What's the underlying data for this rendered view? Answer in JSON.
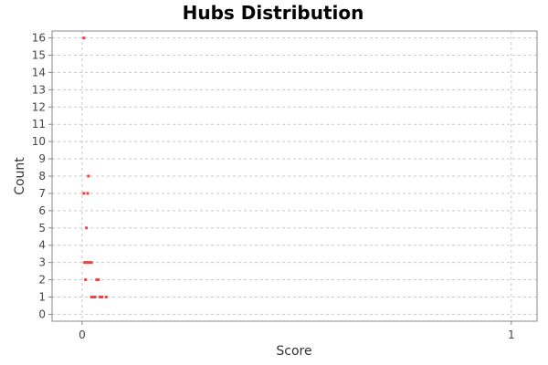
{
  "chart_data": {
    "type": "scatter",
    "title": "Hubs Distribution",
    "xlabel": "Score",
    "ylabel": "Count",
    "xlim": [
      -0.07,
      1.06
    ],
    "ylim": [
      -0.4,
      16.4
    ],
    "x_ticks": [
      0,
      1
    ],
    "y_ticks": [
      0,
      1,
      2,
      3,
      4,
      5,
      6,
      7,
      8,
      9,
      10,
      11,
      12,
      13,
      14,
      15,
      16
    ],
    "grid": true,
    "series": [
      {
        "color": "#ee4444",
        "points": [
          {
            "x": 0.004,
            "y": 16
          },
          {
            "x": 0.015,
            "y": 8
          },
          {
            "x": 0.004,
            "y": 7
          },
          {
            "x": 0.013,
            "y": 7
          },
          {
            "x": 0.01,
            "y": 5
          },
          {
            "x": 0.006,
            "y": 3
          },
          {
            "x": 0.01,
            "y": 3
          },
          {
            "x": 0.014,
            "y": 3
          },
          {
            "x": 0.018,
            "y": 3
          },
          {
            "x": 0.022,
            "y": 3
          },
          {
            "x": 0.008,
            "y": 2
          },
          {
            "x": 0.034,
            "y": 2
          },
          {
            "x": 0.038,
            "y": 2
          },
          {
            "x": 0.022,
            "y": 1
          },
          {
            "x": 0.026,
            "y": 1
          },
          {
            "x": 0.03,
            "y": 1
          },
          {
            "x": 0.042,
            "y": 1
          },
          {
            "x": 0.046,
            "y": 1
          },
          {
            "x": 0.056,
            "y": 1
          }
        ]
      }
    ]
  }
}
